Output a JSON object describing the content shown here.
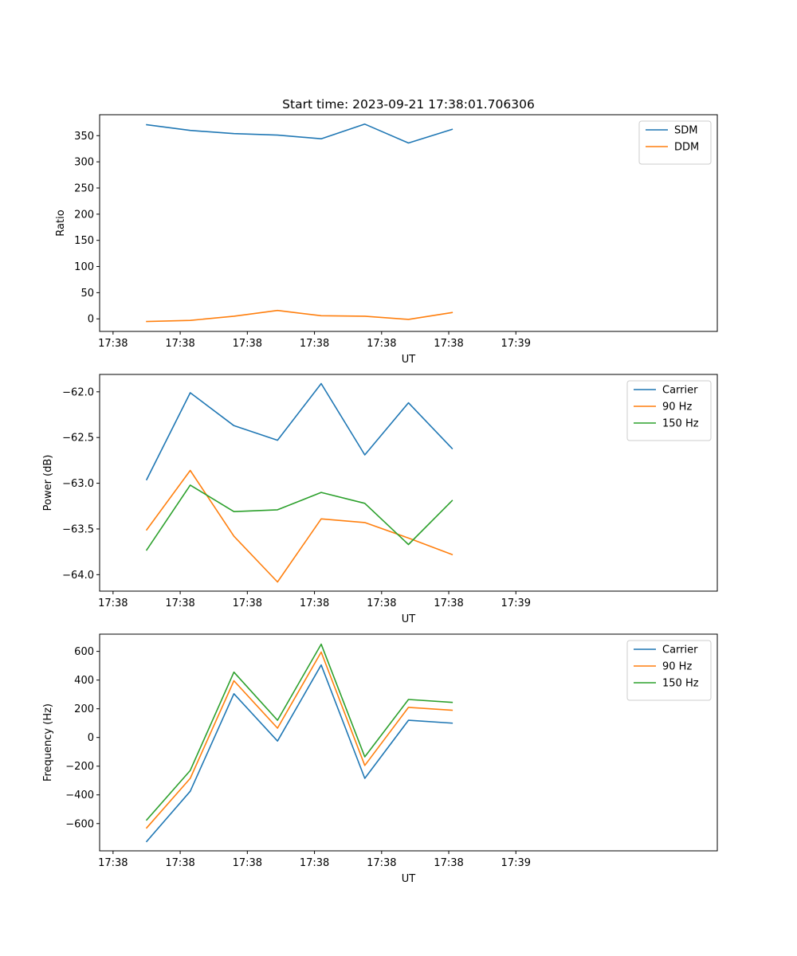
{
  "chart_data": [
    {
      "type": "line",
      "title": "Start time: 2023-09-21 17:38:01.706306",
      "xlabel": "UT",
      "ylabel": "Ratio",
      "xlim": [
        -0.2,
        9.0
      ],
      "ylim": [
        -24,
        390
      ],
      "xticks": [
        0,
        1,
        2,
        3,
        4,
        5,
        6
      ],
      "xtick_labels": [
        "17:38",
        "17:38",
        "17:38",
        "17:38",
        "17:38",
        "17:38",
        "17:39"
      ],
      "yticks": [
        0,
        50,
        100,
        150,
        200,
        250,
        300,
        350
      ],
      "ytick_labels": [
        "0",
        "50",
        "100",
        "150",
        "200",
        "250",
        "300",
        "350"
      ],
      "x": [
        0.5,
        1.15,
        1.8,
        2.45,
        3.1,
        3.75,
        4.4,
        5.05
      ],
      "legend_position": "top-right",
      "series": [
        {
          "name": "SDM",
          "color": "#1f77b4",
          "values": [
            371,
            360,
            354,
            351,
            344,
            372,
            336,
            362
          ]
        },
        {
          "name": "DDM",
          "color": "#ff7f0e",
          "values": [
            -5,
            -3,
            5,
            16,
            6,
            5,
            -1,
            12
          ]
        }
      ]
    },
    {
      "type": "line",
      "title": "",
      "xlabel": "UT",
      "ylabel": "Power (dB)",
      "xlim": [
        -0.2,
        9.0
      ],
      "ylim": [
        -64.18,
        -61.81
      ],
      "xticks": [
        0,
        1,
        2,
        3,
        4,
        5,
        6
      ],
      "xtick_labels": [
        "17:38",
        "17:38",
        "17:38",
        "17:38",
        "17:38",
        "17:38",
        "17:39"
      ],
      "yticks": [
        -64.0,
        -63.5,
        -63.0,
        -62.5,
        -62.0
      ],
      "ytick_labels": [
        "−64.0",
        "−63.5",
        "−63.0",
        "−62.5",
        "−62.0"
      ],
      "x": [
        0.5,
        1.15,
        1.8,
        2.45,
        3.1,
        3.75,
        4.4,
        5.05
      ],
      "legend_position": "top-right",
      "series": [
        {
          "name": "Carrier",
          "color": "#1f77b4",
          "values": [
            -62.96,
            -62.01,
            -62.37,
            -62.53,
            -61.91,
            -62.69,
            -62.12,
            -62.62
          ]
        },
        {
          "name": "90 Hz",
          "color": "#ff7f0e",
          "values": [
            -63.51,
            -62.86,
            -63.58,
            -64.08,
            -63.39,
            -63.43,
            -63.6,
            -63.78
          ]
        },
        {
          "name": "150 Hz",
          "color": "#2ca02c",
          "values": [
            -63.73,
            -63.02,
            -63.31,
            -63.29,
            -63.1,
            -63.22,
            -63.67,
            -63.19
          ]
        }
      ]
    },
    {
      "type": "line",
      "title": "",
      "xlabel": "UT",
      "ylabel": "Frequency (Hz)",
      "xlim": [
        -0.2,
        9.0
      ],
      "ylim": [
        -790,
        720
      ],
      "xticks": [
        0,
        1,
        2,
        3,
        4,
        5,
        6
      ],
      "xtick_labels": [
        "17:38",
        "17:38",
        "17:38",
        "17:38",
        "17:38",
        "17:38",
        "17:39"
      ],
      "yticks": [
        -600,
        -400,
        -200,
        0,
        200,
        400,
        600
      ],
      "ytick_labels": [
        "−600",
        "−400",
        "−200",
        "0",
        "200",
        "400",
        "600"
      ],
      "x": [
        0.5,
        1.15,
        1.8,
        2.45,
        3.1,
        3.75,
        4.4,
        5.05
      ],
      "legend_position": "top-right",
      "series": [
        {
          "name": "Carrier",
          "color": "#1f77b4",
          "values": [
            -725,
            -375,
            305,
            -25,
            505,
            -285,
            120,
            100
          ]
        },
        {
          "name": "90 Hz",
          "color": "#ff7f0e",
          "values": [
            -630,
            -285,
            395,
            65,
            595,
            -195,
            210,
            190
          ]
        },
        {
          "name": "150 Hz",
          "color": "#2ca02c",
          "values": [
            -575,
            -230,
            455,
            120,
            650,
            -135,
            265,
            245
          ]
        }
      ]
    }
  ]
}
